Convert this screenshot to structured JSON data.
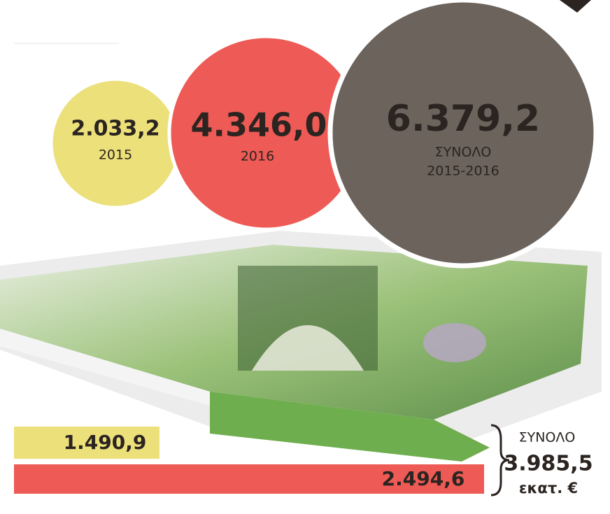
{
  "bubbles": [
    {
      "value": "2.033,2",
      "label": "2015"
    },
    {
      "value": "4.346,0",
      "label": "2016"
    },
    {
      "value": "6.379,2",
      "label": "ΣΥΝΟΛΟ",
      "sublabel": "2015-2016"
    }
  ],
  "bars": [
    {
      "value": "1.490,9"
    },
    {
      "value": "2.494,6"
    }
  ],
  "total": {
    "label": "ΣΥΝΟΛΟ",
    "value": "3.985,5",
    "unit": "εκατ. €"
  }
}
